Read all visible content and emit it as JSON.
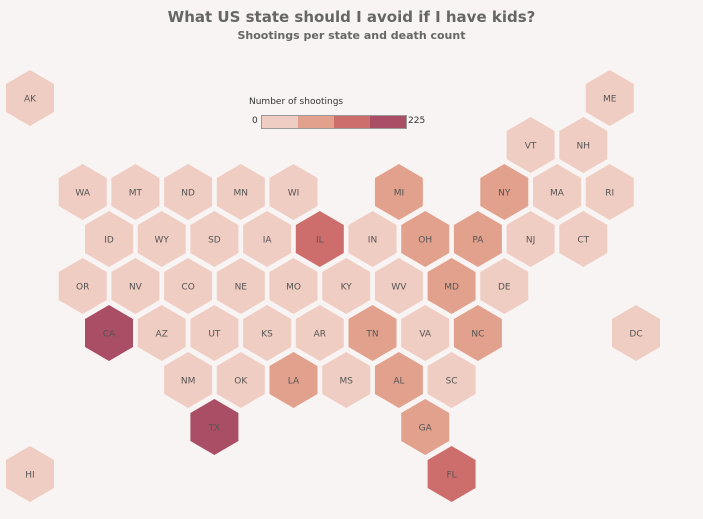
{
  "chart_data": {
    "type": "hex-tile-map",
    "title": "What US state should I avoid if I have kids?",
    "subtitle": "Shootings per state and death count",
    "legend": {
      "title": "Number of shootings",
      "min": "0",
      "max": "225",
      "colors": [
        "#f0cdc3",
        "#e2a18d",
        "#cd6e6c",
        "#a94e64"
      ]
    },
    "states": [
      {
        "code": "AK",
        "row": 0,
        "col": 0,
        "bin": 1
      },
      {
        "code": "ME",
        "row": 0,
        "col": 11,
        "bin": 1
      },
      {
        "code": "VT",
        "row": 1,
        "col": 9,
        "bin": 1
      },
      {
        "code": "NH",
        "row": 1,
        "col": 10,
        "bin": 1
      },
      {
        "code": "WA",
        "row": 2,
        "col": 1,
        "bin": 1
      },
      {
        "code": "MT",
        "row": 2,
        "col": 2,
        "bin": 1
      },
      {
        "code": "ND",
        "row": 2,
        "col": 3,
        "bin": 1
      },
      {
        "code": "MN",
        "row": 2,
        "col": 4,
        "bin": 1
      },
      {
        "code": "WI",
        "row": 2,
        "col": 5,
        "bin": 1
      },
      {
        "code": "MI",
        "row": 2,
        "col": 7,
        "bin": 2
      },
      {
        "code": "NY",
        "row": 2,
        "col": 9,
        "bin": 2
      },
      {
        "code": "MA",
        "row": 2,
        "col": 10,
        "bin": 1
      },
      {
        "code": "RI",
        "row": 2,
        "col": 11,
        "bin": 1
      },
      {
        "code": "ID",
        "row": 3,
        "col": 1,
        "bin": 1
      },
      {
        "code": "WY",
        "row": 3,
        "col": 2,
        "bin": 1
      },
      {
        "code": "SD",
        "row": 3,
        "col": 3,
        "bin": 1
      },
      {
        "code": "IA",
        "row": 3,
        "col": 4,
        "bin": 1
      },
      {
        "code": "IL",
        "row": 3,
        "col": 5,
        "bin": 3
      },
      {
        "code": "IN",
        "row": 3,
        "col": 6,
        "bin": 1
      },
      {
        "code": "OH",
        "row": 3,
        "col": 7,
        "bin": 2
      },
      {
        "code": "PA",
        "row": 3,
        "col": 8,
        "bin": 2
      },
      {
        "code": "NJ",
        "row": 3,
        "col": 9,
        "bin": 1
      },
      {
        "code": "CT",
        "row": 3,
        "col": 10,
        "bin": 1
      },
      {
        "code": "OR",
        "row": 4,
        "col": 1,
        "bin": 1
      },
      {
        "code": "NV",
        "row": 4,
        "col": 2,
        "bin": 1
      },
      {
        "code": "CO",
        "row": 4,
        "col": 3,
        "bin": 1
      },
      {
        "code": "NE",
        "row": 4,
        "col": 4,
        "bin": 1
      },
      {
        "code": "MO",
        "row": 4,
        "col": 5,
        "bin": 1
      },
      {
        "code": "KY",
        "row": 4,
        "col": 6,
        "bin": 1
      },
      {
        "code": "WV",
        "row": 4,
        "col": 7,
        "bin": 1
      },
      {
        "code": "MD",
        "row": 4,
        "col": 8,
        "bin": 2
      },
      {
        "code": "DE",
        "row": 4,
        "col": 9,
        "bin": 1
      },
      {
        "code": "CA",
        "row": 5,
        "col": 1,
        "bin": 4
      },
      {
        "code": "AZ",
        "row": 5,
        "col": 2,
        "bin": 1
      },
      {
        "code": "UT",
        "row": 5,
        "col": 3,
        "bin": 1
      },
      {
        "code": "KS",
        "row": 5,
        "col": 4,
        "bin": 1
      },
      {
        "code": "AR",
        "row": 5,
        "col": 5,
        "bin": 1
      },
      {
        "code": "TN",
        "row": 5,
        "col": 6,
        "bin": 2
      },
      {
        "code": "VA",
        "row": 5,
        "col": 7,
        "bin": 1
      },
      {
        "code": "NC",
        "row": 5,
        "col": 8,
        "bin": 2
      },
      {
        "code": "DC",
        "row": 5,
        "col": 11,
        "bin": 1
      },
      {
        "code": "NM",
        "row": 6,
        "col": 3,
        "bin": 1
      },
      {
        "code": "OK",
        "row": 6,
        "col": 4,
        "bin": 1
      },
      {
        "code": "LA",
        "row": 6,
        "col": 5,
        "bin": 2
      },
      {
        "code": "MS",
        "row": 6,
        "col": 6,
        "bin": 1
      },
      {
        "code": "AL",
        "row": 6,
        "col": 7,
        "bin": 2
      },
      {
        "code": "SC",
        "row": 6,
        "col": 8,
        "bin": 1
      },
      {
        "code": "TX",
        "row": 7,
        "col": 3,
        "bin": 4
      },
      {
        "code": "GA",
        "row": 7,
        "col": 7,
        "bin": 2
      },
      {
        "code": "HI",
        "row": 8,
        "col": 0,
        "bin": 1
      },
      {
        "code": "FL",
        "row": 8,
        "col": 8,
        "bin": 3
      }
    ]
  }
}
